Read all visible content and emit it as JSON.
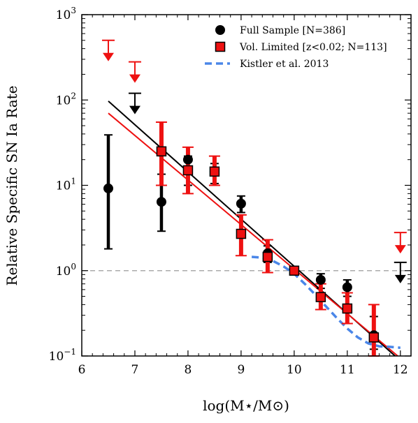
{
  "chart_data": {
    "type": "scatter",
    "title": "",
    "xlabel": "log(M⋆/M⊙)",
    "ylabel": "Relative Specific SN Ia Rate",
    "x_scale": "linear",
    "y_scale": "log",
    "xlim": [
      6,
      12.2
    ],
    "ylim": [
      0.1,
      1000
    ],
    "x_ticks": [
      6,
      7,
      8,
      9,
      10,
      11,
      12
    ],
    "x_tick_labels": [
      "6",
      "7",
      "8",
      "9",
      "10",
      "11",
      "12"
    ],
    "y_ticks": [
      0.1,
      1,
      10,
      100,
      1000
    ],
    "y_tick_labels": [
      {
        "base": "10",
        "exp": "−1"
      },
      {
        "base": "10",
        "exp": "0"
      },
      {
        "base": "10",
        "exp": "1"
      },
      {
        "base": "10",
        "exp": "2"
      },
      {
        "base": "10",
        "exp": "3"
      }
    ],
    "reference_line": {
      "y": 1.0,
      "style": "dashed",
      "color": "#aaaaaa"
    },
    "legend_position": "top-right",
    "series": [
      {
        "name": "Full Sample [N=386]",
        "marker": "circle",
        "color": "#000000",
        "points": [
          {
            "x": 6.5,
            "y": 9.2,
            "y_low": 1.8,
            "y_high": 39
          },
          {
            "x": 7.5,
            "y": 6.4,
            "y_low": 2.9,
            "y_high": 13.5
          },
          {
            "x": 8.0,
            "y": 20,
            "y_low": 10,
            "y_high": 22
          },
          {
            "x": 8.5,
            "y": 14.5,
            "y_low": 10.5,
            "y_high": 18
          },
          {
            "x": 9.0,
            "y": 6.1,
            "y_low": 4.8,
            "y_high": 7.5
          },
          {
            "x": 9.5,
            "y": 1.6,
            "y_low": 1.25,
            "y_high": 1.95
          },
          {
            "x": 10.0,
            "y": 1.0,
            "y_low": 1.0,
            "y_high": 1.0
          },
          {
            "x": 10.5,
            "y": 0.78,
            "y_low": 0.62,
            "y_high": 0.92
          },
          {
            "x": 11.0,
            "y": 0.64,
            "y_low": 0.5,
            "y_high": 0.78
          },
          {
            "x": 11.5,
            "y": 0.175,
            "y_low": 0.12,
            "y_high": 0.29
          }
        ],
        "upper_limits": [
          {
            "x": 7.0,
            "y": 120
          },
          {
            "x": 12.0,
            "y": 1.25
          }
        ],
        "fit_line": {
          "x": [
            6.5,
            11.9
          ],
          "y": [
            97,
            0.1
          ]
        }
      },
      {
        "name": "Vol. Limited [z<0.02; N=113]",
        "marker": "square",
        "color": "#ee1111",
        "points": [
          {
            "x": 7.5,
            "y": 25,
            "y_low": 10,
            "y_high": 55
          },
          {
            "x": 8.0,
            "y": 15,
            "y_low": 8,
            "y_high": 28
          },
          {
            "x": 8.5,
            "y": 14.5,
            "y_low": 10,
            "y_high": 22
          },
          {
            "x": 9.0,
            "y": 2.7,
            "y_low": 1.5,
            "y_high": 4.5
          },
          {
            "x": 9.5,
            "y": 1.45,
            "y_low": 0.95,
            "y_high": 2.3
          },
          {
            "x": 10.0,
            "y": 1.0,
            "y_low": 1.0,
            "y_high": 1.0
          },
          {
            "x": 10.5,
            "y": 0.49,
            "y_low": 0.35,
            "y_high": 0.7
          },
          {
            "x": 11.0,
            "y": 0.36,
            "y_low": 0.24,
            "y_high": 0.55
          },
          {
            "x": 11.5,
            "y": 0.165,
            "y_low": 0.1,
            "y_high": 0.4
          }
        ],
        "upper_limits": [
          {
            "x": 6.5,
            "y": 500
          },
          {
            "x": 7.0,
            "y": 280
          },
          {
            "x": 12.0,
            "y": 2.8
          }
        ],
        "fit_line": {
          "x": [
            6.5,
            11.95
          ],
          "y": [
            70,
            0.1
          ]
        }
      },
      {
        "name": "Kistler et al. 2013",
        "marker": "dashed-line",
        "color": "#4a86e8",
        "line": {
          "x": [
            9.2,
            9.4,
            9.6,
            9.8,
            10.0,
            10.2,
            10.4,
            10.6,
            10.8,
            11.0,
            11.2,
            11.4,
            11.6,
            11.8,
            12.0
          ],
          "y": [
            1.45,
            1.42,
            1.3,
            1.12,
            0.92,
            0.7,
            0.52,
            0.38,
            0.28,
            0.21,
            0.165,
            0.14,
            0.13,
            0.128,
            0.125
          ]
        }
      }
    ]
  }
}
